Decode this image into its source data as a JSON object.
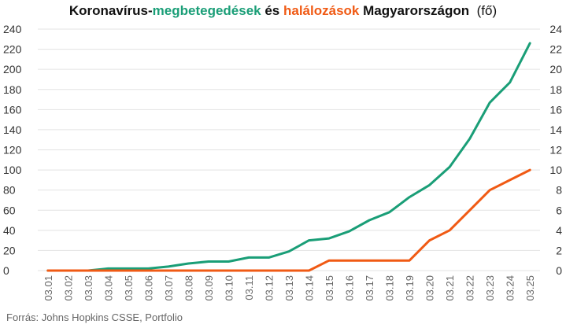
{
  "title": {
    "part1": "Koronavírus-",
    "part2": "megbetegedések",
    "part3": " és ",
    "part4": "halálozások",
    "part5": " Magyarországon",
    "unit": "(fő)"
  },
  "source": "Forrás: Johns Hopkins CSSE, Portfolio",
  "colors": {
    "cases": "#1a9e77",
    "deaths": "#f05a14",
    "grid": "#e3e3e3",
    "text": "#333333"
  },
  "chart_data": {
    "type": "line",
    "title": "Koronavírus-megbetegedések és halálozások Magyarországon (fő)",
    "categories": [
      "03.01",
      "03.02",
      "03.03",
      "03.04",
      "03.05",
      "03.06",
      "03.07",
      "03.08",
      "03.09",
      "03.10",
      "03.11",
      "03.12",
      "03.13",
      "03.14",
      "03.15",
      "03.16",
      "03.17",
      "03.18",
      "03.19",
      "03.20",
      "03.21",
      "03.22",
      "03.23",
      "03.24",
      "03.25"
    ],
    "series": [
      {
        "name": "megbetegedések",
        "axis": "left",
        "values": [
          0,
          0,
          0,
          2,
          2,
          2,
          4,
          7,
          9,
          9,
          13,
          13,
          19,
          30,
          32,
          39,
          50,
          58,
          73,
          85,
          103,
          131,
          167,
          187,
          226
        ]
      },
      {
        "name": "halálozások",
        "axis": "right",
        "values": [
          0,
          0,
          0,
          0,
          0,
          0,
          0,
          0,
          0,
          0,
          0,
          0,
          0,
          0,
          1,
          1,
          1,
          1,
          1,
          3,
          4,
          6,
          8,
          9,
          10
        ]
      }
    ],
    "y_left": {
      "min": 0,
      "max": 240,
      "step": 20
    },
    "y_right": {
      "min": 0,
      "max": 24,
      "step": 2
    },
    "grid": true,
    "legend": "none"
  }
}
